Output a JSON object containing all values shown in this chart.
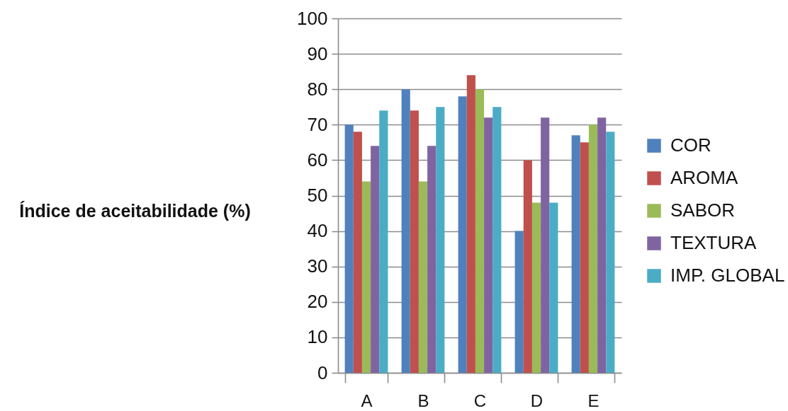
{
  "chart_data": {
    "type": "bar",
    "ylabel": "Índice de aceitabilidade (%)",
    "categories": [
      "A",
      "B",
      "C",
      "D",
      "E"
    ],
    "series": [
      {
        "name": "COR",
        "color": "#4f81bd",
        "values": [
          70,
          80,
          78,
          40,
          67
        ]
      },
      {
        "name": "AROMA",
        "color": "#c0504d",
        "values": [
          68,
          74,
          84,
          60,
          65
        ]
      },
      {
        "name": "SABOR",
        "color": "#9bbb59",
        "values": [
          54,
          54,
          80,
          48,
          70
        ]
      },
      {
        "name": "TEXTURA",
        "color": "#8064a2",
        "values": [
          64,
          64,
          72,
          72,
          72
        ]
      },
      {
        "name": "IMP. GLOBAL",
        "color": "#4bacc6",
        "values": [
          74,
          75,
          75,
          48,
          68
        ]
      }
    ],
    "ylim": [
      0,
      100
    ],
    "yticks": [
      0,
      10,
      20,
      30,
      40,
      50,
      60,
      70,
      80,
      90,
      100
    ],
    "grid": "y",
    "legend": "right"
  }
}
